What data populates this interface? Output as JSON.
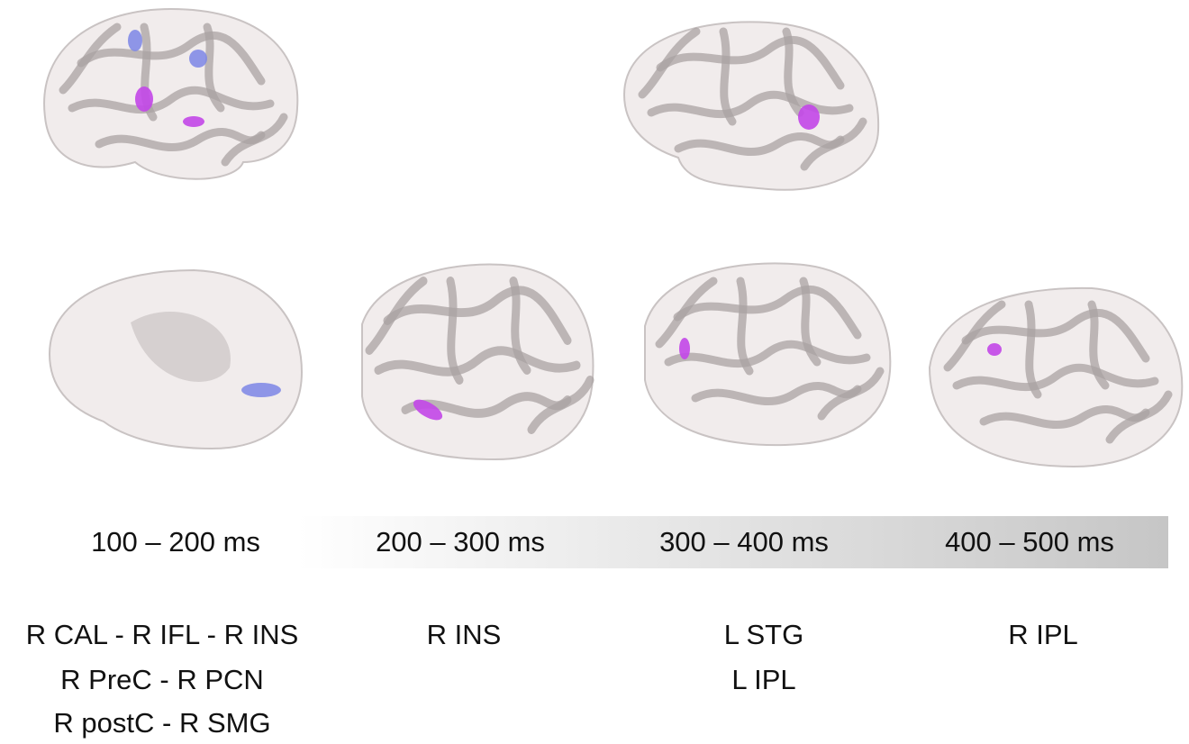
{
  "columns": [
    {
      "time": "100 – 200 ms",
      "regions": [
        "R CAL - R IFL - R INS",
        "R PreC - R PCN",
        "R postC - R SMG"
      ]
    },
    {
      "time": "200 – 300 ms",
      "regions": [
        "R INS"
      ]
    },
    {
      "time": "300 – 400 ms",
      "regions": [
        "L STG",
        "L IPL"
      ]
    },
    {
      "time": "400 – 500 ms",
      "regions": [
        "R IPL"
      ]
    }
  ]
}
